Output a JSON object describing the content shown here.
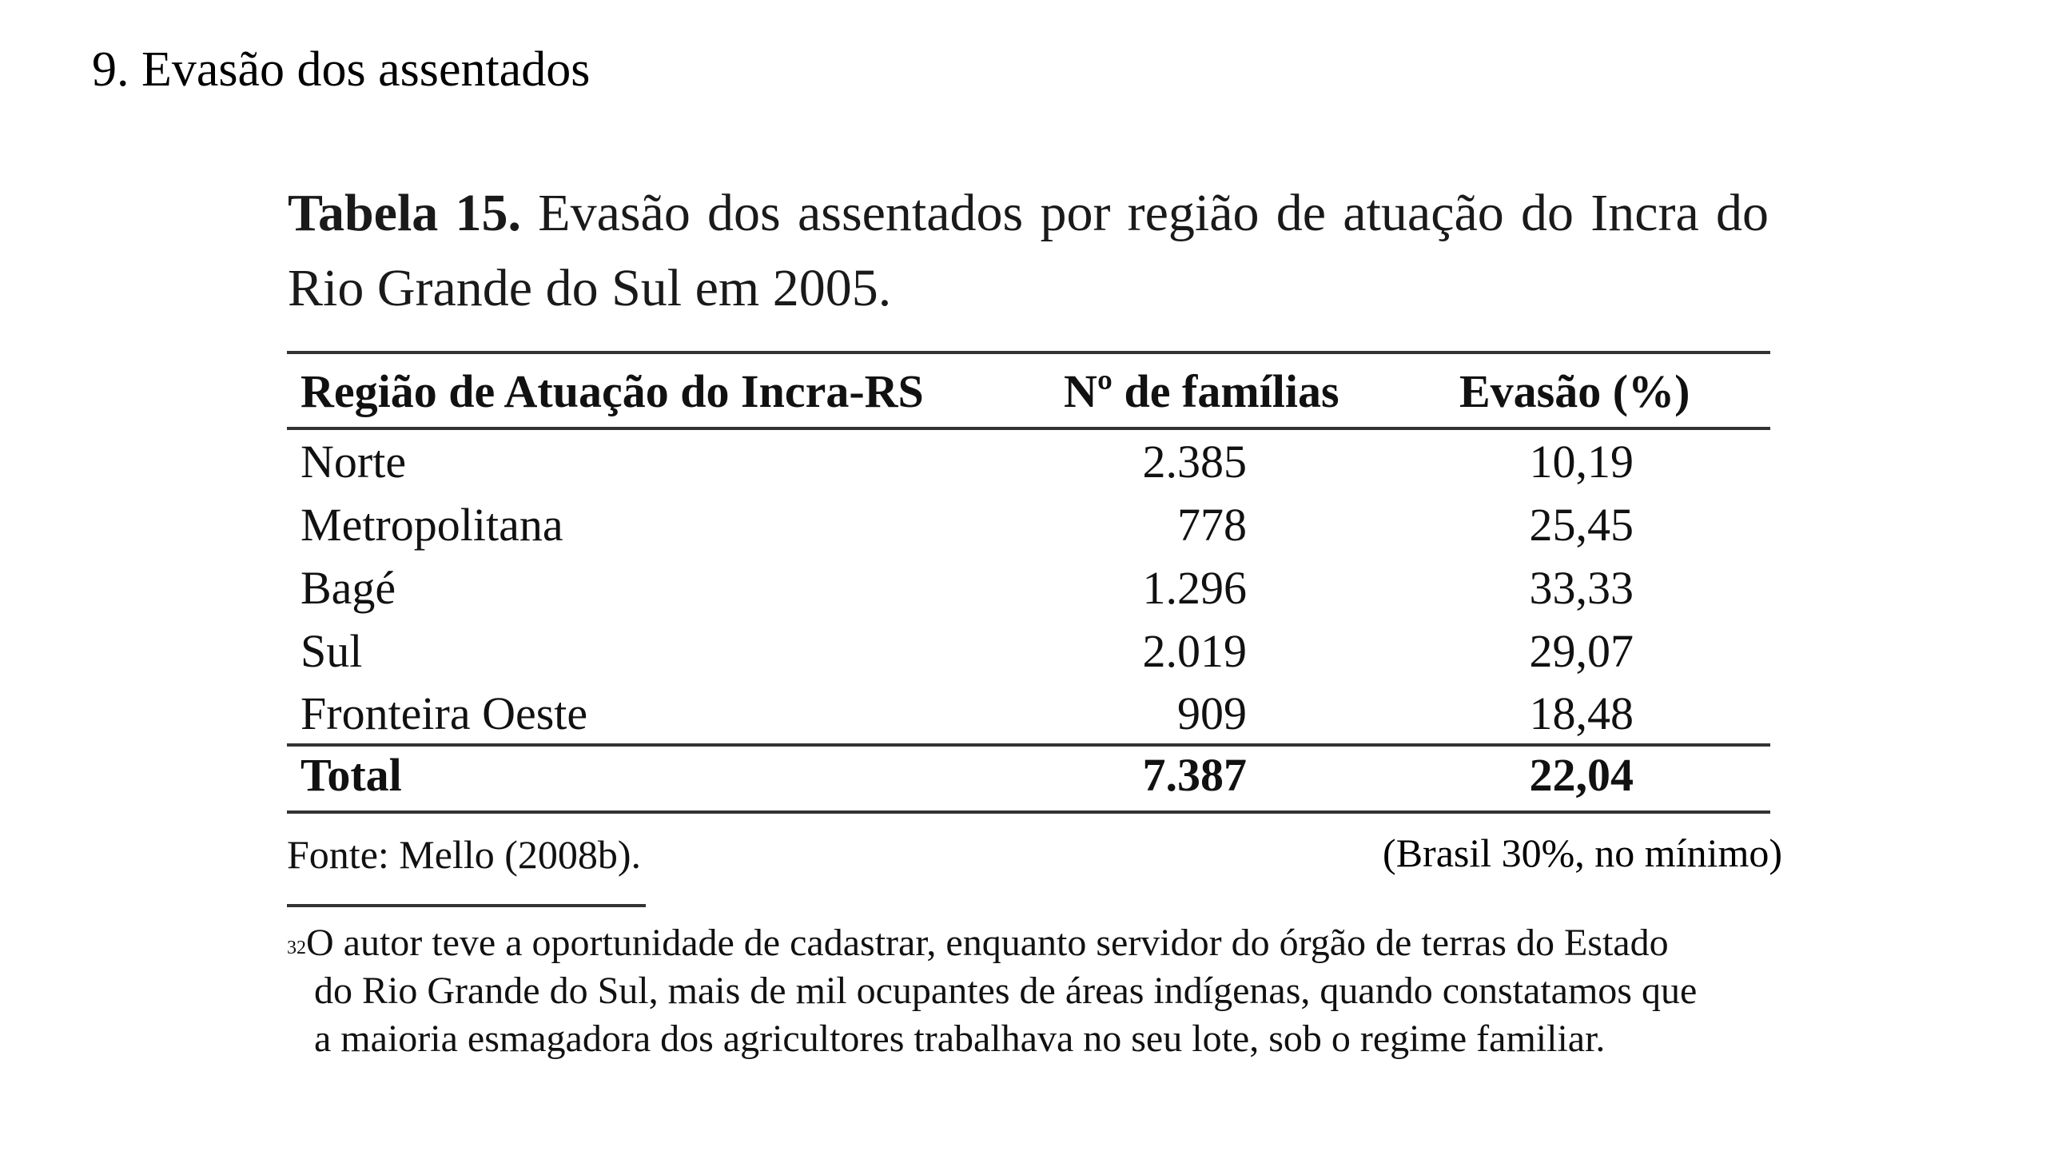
{
  "heading": "9. Evasão dos assentados",
  "table_title": {
    "label": "Tabela 15.",
    "text": "Evasão dos assentados por região de atuação do Incra do Rio Grande do Sul em 2005."
  },
  "table": {
    "headers": [
      "Região de Atuação do Incra-RS",
      "Nº de famílias",
      "Evasão (%)"
    ],
    "rows": [
      [
        "Norte",
        "2.385",
        "10,19"
      ],
      [
        "Metropolitana",
        "778",
        "25,45"
      ],
      [
        "Bagé",
        "1.296",
        "33,33"
      ],
      [
        "Sul",
        "2.019",
        "29,07"
      ],
      [
        "Fronteira Oeste",
        "909",
        "18,48"
      ]
    ],
    "total": [
      "Total",
      "7.387",
      "22,04"
    ]
  },
  "source": "Fonte: Mello (2008b).",
  "annotation": "(Brasil 30%, no mínimo)",
  "footnote": {
    "number": "32",
    "lines": [
      "O autor teve a oportunidade de cadastrar, enquanto servidor do órgão de terras do Estado",
      "do Rio Grande do Sul, mais de mil ocupantes de áreas indígenas, quando constatamos que",
      "a maioria esmagadora dos agricultores trabalhava no seu lote, sob o regime familiar."
    ]
  }
}
